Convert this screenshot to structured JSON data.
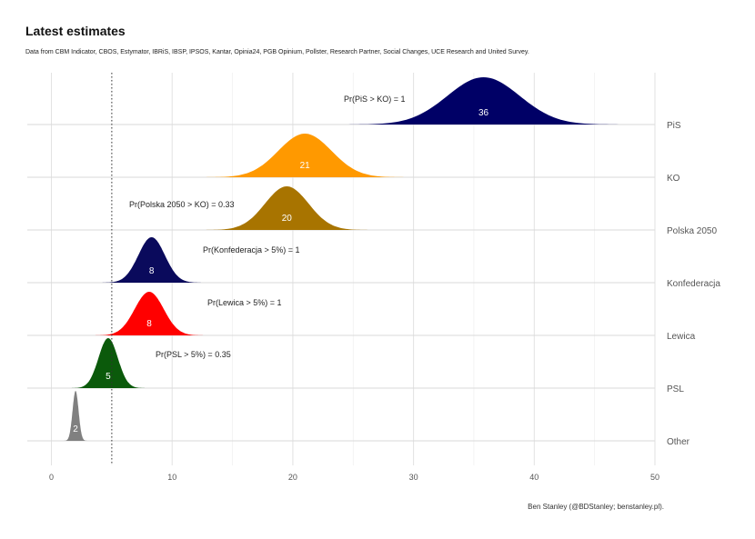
{
  "chart_data": {
    "type": "ridgeline",
    "title": "Latest estimates",
    "subtitle": "Data from CBM Indicator, CBOS, Estymator, IBRiS, IBSP, IPSOS, Kantar, Opinia24, PGB Opinium, Pollster, Research Partner, Social Changes, UCE Research and United Survey.",
    "caption": "Ben Stanley (@BDStanley; benstanley.pl).",
    "xlim": [
      -2,
      50
    ],
    "x_ticks": [
      "0",
      "10",
      "20",
      "30",
      "40",
      "50"
    ],
    "x_tick_values": [
      0,
      10,
      20,
      30,
      40,
      50
    ],
    "threshold_line": 5,
    "grid": true,
    "series": [
      {
        "name": "PiS",
        "mean": 35.8,
        "sd": 3.0,
        "label": "36",
        "color": "#000066"
      },
      {
        "name": "KO",
        "mean": 21.0,
        "sd": 2.2,
        "label": "21",
        "color": "#FF9900"
      },
      {
        "name": "Polska 2050",
        "mean": 19.5,
        "sd": 1.8,
        "label": "20",
        "color": "#A87400"
      },
      {
        "name": "Konfederacja",
        "mean": 8.3,
        "sd": 1.1,
        "label": "8",
        "color": "#0A0A5C"
      },
      {
        "name": "Lewica",
        "mean": 8.1,
        "sd": 1.2,
        "label": "8",
        "color": "#FF0000"
      },
      {
        "name": "PSL",
        "mean": 4.7,
        "sd": 0.8,
        "label": "5",
        "color": "#0B5A0B"
      },
      {
        "name": "Other",
        "mean": 2.0,
        "sd": 0.25,
        "label": "2",
        "color": "#808080"
      }
    ],
    "annotations": [
      {
        "text": "Pr(PiS > KO)  =  1",
        "row": "PiS"
      },
      {
        "text": "Pr(Polska 2050 > KO)  =  0.33",
        "row": "Polska 2050"
      },
      {
        "text": "Pr(Konfederacja > 5%)  =  1",
        "row": "Konfederacja"
      },
      {
        "text": "Pr(Lewica > 5%)  =  1",
        "row": "Lewica"
      },
      {
        "text": "Pr(PSL > 5%)  =  0.35",
        "row": "PSL"
      }
    ]
  }
}
